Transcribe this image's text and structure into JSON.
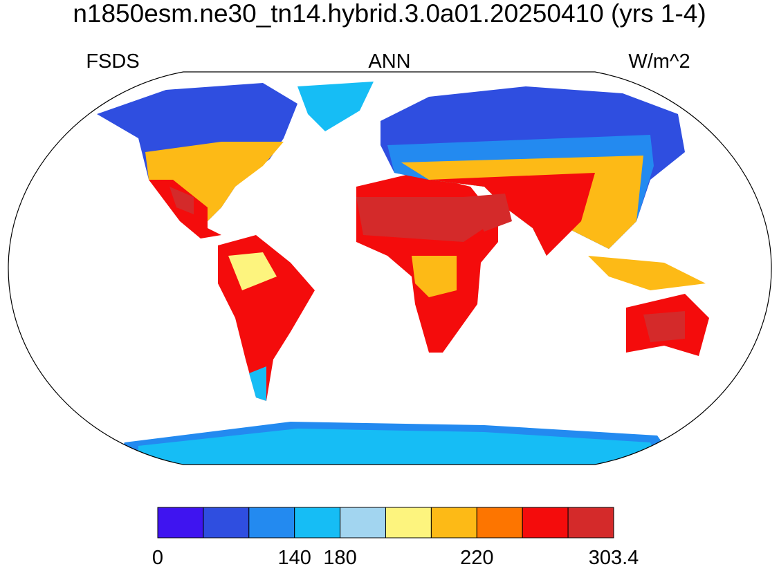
{
  "title": "n1850esm.ne30_tn14.hybrid.3.0a01.20250410 (yrs 1-4)",
  "left_label": "FSDS",
  "center_label": "ANN",
  "right_label": "W/m^2",
  "colorbar": {
    "colors": [
      "#3f14f0",
      "#2f4ee0",
      "#238af0",
      "#16bdf5",
      "#a2d5f0",
      "#fdf47e",
      "#fdba16",
      "#fd7500",
      "#f40c0c",
      "#d42a2a"
    ],
    "levels": [
      0,
      null,
      null,
      140,
      180,
      null,
      null,
      220,
      null,
      null,
      303.4
    ]
  }
}
